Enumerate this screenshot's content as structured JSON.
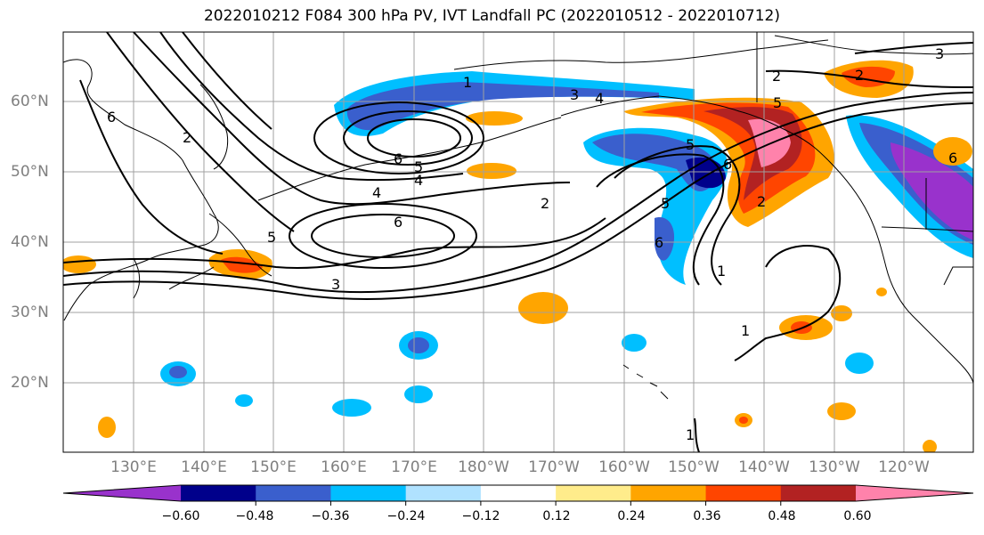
{
  "title": "2022010212 F084 300 hPa PV, IVT Landfall PC (2022010512 - 2022010712)",
  "lat_labels": [
    "60°N",
    "50°N",
    "40°N",
    "30°N",
    "20°N"
  ],
  "lon_labels": [
    "130°E",
    "140°E",
    "150°E",
    "160°E",
    "170°E",
    "180°W",
    "170°W",
    "160°W",
    "150°W",
    "140°W",
    "130°W",
    "120°W"
  ],
  "contour_labels": [
    "1",
    "6",
    "2",
    "3",
    "3",
    "5",
    "2",
    "5",
    "6",
    "5",
    "4",
    "4",
    "6",
    "5",
    "6",
    "2",
    "5",
    "6",
    "1",
    "1",
    "1",
    "2",
    "2",
    "4",
    "3",
    "6"
  ],
  "colorbar": {
    "tick_labels": [
      "−0.60",
      "−0.48",
      "−0.36",
      "−0.24",
      "−0.12",
      "0.12",
      "0.24",
      "0.36",
      "0.48",
      "0.60"
    ],
    "colors": [
      "#9932cc",
      "#00008b",
      "#3a5fcd",
      "#00bfff",
      "#b0e2ff",
      "#ffffff",
      "#ffec8b",
      "#ffa500",
      "#ff4500",
      "#b22222",
      "#ff82ab"
    ]
  }
}
